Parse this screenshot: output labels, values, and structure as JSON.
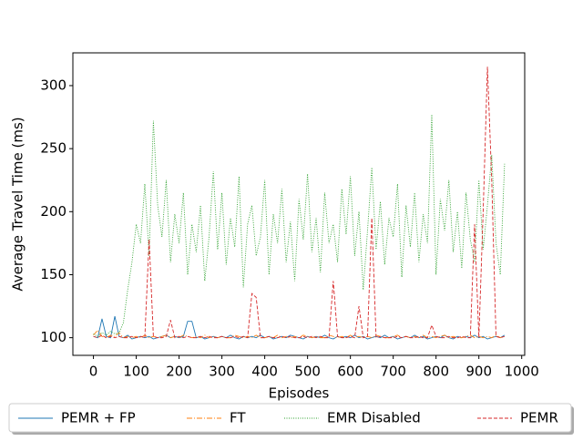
{
  "chart_data": {
    "type": "line",
    "xlabel": "Episodes",
    "ylabel": "Average Travel Time (ms)",
    "xlim": [
      -48,
      1007
    ],
    "ylim": [
      86,
      326
    ],
    "xticks": [
      0,
      100,
      200,
      300,
      400,
      500,
      600,
      700,
      800,
      900,
      1000
    ],
    "yticks": [
      100,
      150,
      200,
      250,
      300
    ],
    "grid": false,
    "legend": "below",
    "x": [
      0,
      10,
      20,
      30,
      40,
      50,
      60,
      70,
      80,
      90,
      100,
      110,
      120,
      130,
      140,
      150,
      160,
      170,
      180,
      190,
      200,
      210,
      220,
      230,
      240,
      250,
      260,
      270,
      280,
      290,
      300,
      310,
      320,
      330,
      340,
      350,
      360,
      370,
      380,
      390,
      400,
      410,
      420,
      430,
      440,
      450,
      460,
      470,
      480,
      490,
      500,
      510,
      520,
      530,
      540,
      550,
      560,
      570,
      580,
      590,
      600,
      610,
      620,
      630,
      640,
      650,
      660,
      670,
      680,
      690,
      700,
      710,
      720,
      730,
      740,
      750,
      760,
      770,
      780,
      790,
      800,
      810,
      820,
      830,
      840,
      850,
      860,
      870,
      880,
      890,
      900,
      910,
      920,
      930,
      940,
      950,
      960
    ],
    "series": [
      {
        "name": "PEMR + FP",
        "color": "#1f77b4",
        "linestyle": "solid",
        "values": [
          101,
          100,
          115,
          101,
          100,
          117,
          101,
          100,
          102,
          99,
          100,
          101,
          100,
          101,
          99,
          100,
          101,
          102,
          100,
          101,
          100,
          101,
          113,
          113,
          100,
          101,
          99,
          100,
          101,
          100,
          101,
          100,
          102,
          100,
          99,
          101,
          100,
          101,
          100,
          102,
          100,
          101,
          99,
          100,
          101,
          100,
          102,
          101,
          100,
          99,
          101,
          100,
          101,
          100,
          102,
          100,
          99,
          101,
          100,
          101,
          100,
          102,
          100,
          101,
          99,
          100,
          101,
          100,
          102,
          100,
          101,
          99,
          100,
          101,
          100,
          102,
          100,
          101,
          99,
          100,
          101,
          100,
          102,
          100,
          99,
          101,
          100,
          101,
          100,
          102,
          100,
          101,
          99,
          100,
          101,
          100,
          102
        ]
      },
      {
        "name": "FT",
        "color": "#ff7f0e",
        "linestyle": "dashdot",
        "values": [
          102,
          106,
          101,
          100,
          102,
          101,
          104,
          100,
          101,
          100,
          101,
          100,
          102,
          100,
          101,
          100,
          101,
          102,
          100,
          101,
          100,
          102,
          101,
          100,
          101,
          100,
          102,
          100,
          101,
          100,
          101,
          100,
          100,
          102,
          101,
          100,
          101,
          100,
          102,
          100,
          100,
          101,
          100,
          102,
          100,
          101,
          100,
          101,
          100,
          102,
          101,
          100,
          101,
          100,
          100,
          102,
          101,
          100,
          101,
          100,
          102,
          100,
          101,
          100,
          101,
          100,
          102,
          101,
          100,
          100,
          101,
          102,
          100,
          101,
          100,
          101,
          100,
          102,
          100,
          101,
          100,
          101,
          102,
          100,
          101,
          100,
          100,
          101,
          102,
          100,
          101,
          100,
          101,
          100,
          102,
          100,
          101
        ]
      },
      {
        "name": "EMR Disabled",
        "color": "#2ca02c",
        "linestyle": "dotted",
        "values": [
          103,
          101,
          104,
          102,
          105,
          103,
          104,
          112,
          138,
          160,
          190,
          175,
          222,
          165,
          272,
          205,
          180,
          225,
          160,
          198,
          175,
          215,
          150,
          190,
          168,
          205,
          145,
          180,
          232,
          170,
          215,
          158,
          195,
          172,
          228,
          140,
          190,
          205,
          165,
          180,
          225,
          150,
          198,
          175,
          218,
          160,
          192,
          145,
          210,
          178,
          230,
          168,
          195,
          152,
          215,
          175,
          190,
          160,
          218,
          182,
          228,
          165,
          200,
          138,
          185,
          235,
          170,
          208,
          158,
          195,
          180,
          222,
          148,
          205,
          172,
          215,
          160,
          198,
          175,
          277,
          150,
          210,
          185,
          225,
          168,
          200,
          155,
          215,
          178,
          160,
          225,
          170,
          205,
          245,
          175,
          150,
          238
        ]
      },
      {
        "name": "PEMR",
        "color": "#d62728",
        "linestyle": "dashed",
        "values": [
          101,
          100,
          102,
          100,
          101,
          100,
          101,
          100,
          100,
          101,
          100,
          101,
          100,
          178,
          101,
          100,
          100,
          101,
          114,
          100,
          101,
          100,
          101,
          100,
          100,
          101,
          100,
          101,
          100,
          100,
          101,
          100,
          100,
          101,
          100,
          101,
          100,
          135,
          132,
          100,
          100,
          101,
          100,
          100,
          101,
          100,
          101,
          100,
          100,
          101,
          100,
          101,
          100,
          101,
          100,
          100,
          145,
          101,
          100,
          100,
          101,
          100,
          125,
          100,
          101,
          195,
          100,
          101,
          100,
          100,
          100,
          101,
          100,
          101,
          100,
          100,
          101,
          100,
          100,
          110,
          101,
          100,
          100,
          101,
          100,
          100,
          101,
          100,
          100,
          190,
          100,
          200,
          315,
          225,
          101,
          100,
          101
        ]
      }
    ]
  }
}
